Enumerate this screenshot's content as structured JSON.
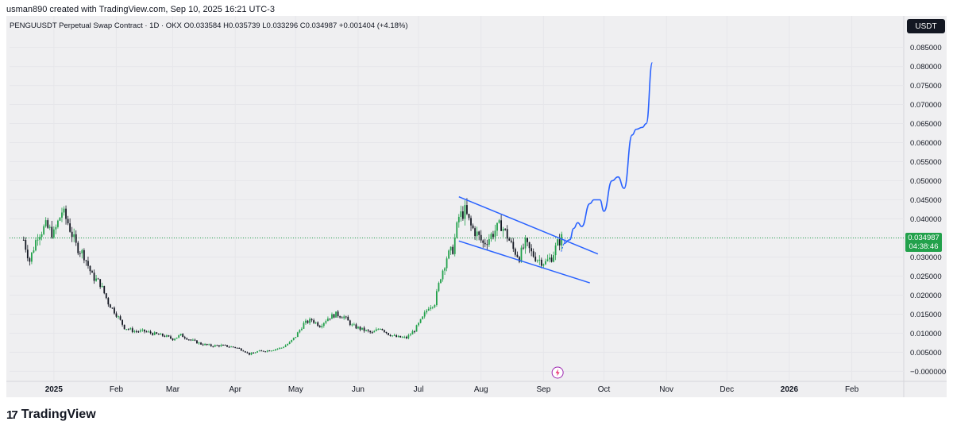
{
  "header": {
    "credit": "usman890 created with TradingView.com, Sep 10, 2025 16:21 UTC-3",
    "symbol_line": "PENGUUSDT Perpetual Swap Contract · 1D · OKX  O0.033584  H0.035739  L0.033296  C0.034987  +0.001404 (+4.18%)",
    "currency": "USDT"
  },
  "price_badge": {
    "price": "0.034987",
    "countdown": "04:38:46"
  },
  "brand": {
    "logo": "17",
    "name": "TradingView"
  },
  "colors": {
    "bull": "#22a14b",
    "bear": "#131722",
    "channel": "#2962ff",
    "projection": "#2962ff",
    "background": "#efeff1"
  },
  "icons": [
    "lightning-icon",
    "tradingview-logo-icon"
  ],
  "chart_data": {
    "type": "candlestick",
    "title": "",
    "xlabel": "",
    "ylabel": "",
    "ylim": [
      -0.002,
      0.087
    ],
    "x_range": [
      "2024-12-10",
      "2026-02-26"
    ],
    "y_ticks": [
      "0.085000",
      "0.080000",
      "0.075000",
      "0.070000",
      "0.065000",
      "0.060000",
      "0.055000",
      "0.050000",
      "0.045000",
      "0.040000",
      "0.035000",
      "0.030000",
      "0.025000",
      "0.020000",
      "0.015000",
      "0.010000",
      "0.005000",
      "−0.000000"
    ],
    "y_tick_values": [
      0.085,
      0.08,
      0.075,
      0.07,
      0.065,
      0.06,
      0.055,
      0.05,
      0.045,
      0.04,
      0.035,
      0.03,
      0.025,
      0.02,
      0.015,
      0.01,
      0.005,
      0.0
    ],
    "x_ticks": [
      {
        "date": "2025-01-01",
        "label": "2025",
        "bold": true
      },
      {
        "date": "2025-02-01",
        "label": "Feb"
      },
      {
        "date": "2025-03-01",
        "label": "Mar"
      },
      {
        "date": "2025-04-01",
        "label": "Apr"
      },
      {
        "date": "2025-05-01",
        "label": "May"
      },
      {
        "date": "2025-06-01",
        "label": "Jun"
      },
      {
        "date": "2025-07-01",
        "label": "Jul"
      },
      {
        "date": "2025-08-01",
        "label": "Aug"
      },
      {
        "date": "2025-09-01",
        "label": "Sep"
      },
      {
        "date": "2025-10-01",
        "label": "Oct"
      },
      {
        "date": "2025-11-01",
        "label": "Nov"
      },
      {
        "date": "2025-12-01",
        "label": "Dec"
      },
      {
        "date": "2026-01-01",
        "label": "2026",
        "bold": true
      },
      {
        "date": "2026-02-01",
        "label": "Feb"
      }
    ],
    "last_price": 0.034987,
    "close_path": [
      [
        "2024-12-17",
        0.0345
      ],
      [
        "2024-12-20",
        0.029
      ],
      [
        "2024-12-24",
        0.036
      ],
      [
        "2024-12-28",
        0.038
      ],
      [
        "2025-01-01",
        0.036
      ],
      [
        "2025-01-05",
        0.042
      ],
      [
        "2025-01-08",
        0.039
      ],
      [
        "2025-01-12",
        0.033
      ],
      [
        "2025-01-16",
        0.0305
      ],
      [
        "2025-01-20",
        0.025
      ],
      [
        "2025-01-24",
        0.023
      ],
      [
        "2025-01-28",
        0.018
      ],
      [
        "2025-02-01",
        0.015
      ],
      [
        "2025-02-05",
        0.0115
      ],
      [
        "2025-02-10",
        0.0105
      ],
      [
        "2025-02-15",
        0.0105
      ],
      [
        "2025-02-20",
        0.0098
      ],
      [
        "2025-02-25",
        0.0093
      ],
      [
        "2025-03-01",
        0.0085
      ],
      [
        "2025-03-05",
        0.0095
      ],
      [
        "2025-03-10",
        0.0082
      ],
      [
        "2025-03-15",
        0.0072
      ],
      [
        "2025-03-20",
        0.0067
      ],
      [
        "2025-03-25",
        0.0068
      ],
      [
        "2025-04-01",
        0.0063
      ],
      [
        "2025-04-05",
        0.0055
      ],
      [
        "2025-04-08",
        0.0045
      ],
      [
        "2025-04-12",
        0.0052
      ],
      [
        "2025-04-18",
        0.0055
      ],
      [
        "2025-04-24",
        0.0062
      ],
      [
        "2025-04-28",
        0.0075
      ],
      [
        "2025-05-01",
        0.0092
      ],
      [
        "2025-05-05",
        0.0125
      ],
      [
        "2025-05-09",
        0.0135
      ],
      [
        "2025-05-13",
        0.012
      ],
      [
        "2025-05-17",
        0.014
      ],
      [
        "2025-05-21",
        0.015
      ],
      [
        "2025-05-25",
        0.0143
      ],
      [
        "2025-05-29",
        0.012
      ],
      [
        "2025-06-03",
        0.011
      ],
      [
        "2025-06-08",
        0.01
      ],
      [
        "2025-06-12",
        0.0115
      ],
      [
        "2025-06-16",
        0.0098
      ],
      [
        "2025-06-20",
        0.009
      ],
      [
        "2025-06-25",
        0.0088
      ],
      [
        "2025-06-29",
        0.0108
      ],
      [
        "2025-07-03",
        0.014
      ],
      [
        "2025-07-06",
        0.017
      ],
      [
        "2025-07-09",
        0.018
      ],
      [
        "2025-07-12",
        0.025
      ],
      [
        "2025-07-15",
        0.03
      ],
      [
        "2025-07-18",
        0.032
      ],
      [
        "2025-07-21",
        0.0405
      ],
      [
        "2025-07-24",
        0.042
      ],
      [
        "2025-07-27",
        0.038
      ],
      [
        "2025-07-30",
        0.036
      ],
      [
        "2025-08-02",
        0.0335
      ],
      [
        "2025-08-05",
        0.035
      ],
      [
        "2025-08-08",
        0.037
      ],
      [
        "2025-08-11",
        0.0385
      ],
      [
        "2025-08-14",
        0.0355
      ],
      [
        "2025-08-17",
        0.032
      ],
      [
        "2025-08-20",
        0.03
      ],
      [
        "2025-08-23",
        0.0335
      ],
      [
        "2025-08-26",
        0.031
      ],
      [
        "2025-08-29",
        0.0295
      ],
      [
        "2025-09-02",
        0.0285
      ],
      [
        "2025-09-05",
        0.03
      ],
      [
        "2025-09-08",
        0.0335
      ],
      [
        "2025-09-10",
        0.035
      ]
    ],
    "channel_upper": [
      [
        "2025-07-21",
        0.0458
      ],
      [
        "2025-09-28",
        0.0308
      ]
    ],
    "channel_lower": [
      [
        "2025-07-21",
        0.0342
      ],
      [
        "2025-09-24",
        0.0232
      ]
    ],
    "projection": [
      [
        "2025-09-11",
        0.0335
      ],
      [
        "2025-09-14",
        0.0345
      ],
      [
        "2025-09-16",
        0.0375
      ],
      [
        "2025-09-18",
        0.039
      ],
      [
        "2025-09-20",
        0.038
      ],
      [
        "2025-09-24",
        0.044
      ],
      [
        "2025-09-26",
        0.045
      ],
      [
        "2025-09-29",
        0.045
      ],
      [
        "2025-10-01",
        0.042
      ],
      [
        "2025-10-05",
        0.05
      ],
      [
        "2025-10-08",
        0.051
      ],
      [
        "2025-10-11",
        0.048
      ],
      [
        "2025-10-15",
        0.062
      ],
      [
        "2025-10-17",
        0.0635
      ],
      [
        "2025-10-20",
        0.064
      ],
      [
        "2025-10-22",
        0.065
      ],
      [
        "2025-10-25",
        0.081
      ]
    ]
  }
}
